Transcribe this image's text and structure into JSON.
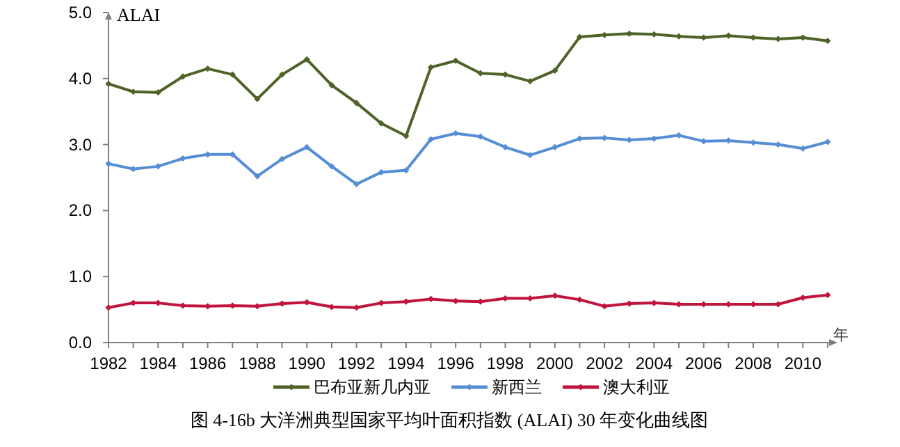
{
  "chart_data": {
    "type": "line",
    "ylabel": "ALAI",
    "xlabel": "年",
    "annotations": [
      "图 4-16b 大洋洲典型国家平均叶面积指数 (ALAI) 30 年变化曲线图"
    ],
    "categories": [
      "1982",
      null,
      "1984",
      null,
      "1986",
      null,
      "1988",
      null,
      "1990",
      null,
      "1992",
      null,
      "1994",
      null,
      "1996",
      null,
      "1998",
      null,
      "2000",
      null,
      "2002",
      null,
      "2004",
      null,
      "2006",
      null,
      "2008",
      null,
      "2010",
      null
    ],
    "ylim": [
      0,
      5
    ],
    "yticks": [
      {
        "value": 0,
        "label": "0.0"
      },
      {
        "value": 1,
        "label": "1.0"
      },
      {
        "value": 2,
        "label": "2.0"
      },
      {
        "value": 3,
        "label": "3.0"
      },
      {
        "value": 4,
        "label": "4.0"
      },
      {
        "value": 5,
        "label": "5.0"
      }
    ],
    "grid": false,
    "legend": "bottom",
    "marker": "diamond",
    "line_style": "solid",
    "series": [
      {
        "name": "巴布亚新几内亚",
        "color": "#4f6228",
        "values": [
          3.92,
          3.8,
          3.79,
          4.03,
          4.15,
          4.06,
          3.69,
          4.06,
          4.29,
          3.9,
          3.63,
          3.32,
          3.13,
          4.17,
          4.27,
          4.08,
          4.06,
          3.96,
          4.12,
          4.63,
          4.66,
          4.68,
          4.67,
          4.64,
          4.62,
          4.65,
          4.62,
          4.6,
          4.62,
          4.57
        ]
      },
      {
        "name": "新西兰",
        "color": "#558ed5",
        "values": [
          2.71,
          2.63,
          2.67,
          2.79,
          2.85,
          2.85,
          2.52,
          2.78,
          2.96,
          2.67,
          2.4,
          2.58,
          2.61,
          3.08,
          3.17,
          3.12,
          2.96,
          2.84,
          2.96,
          3.09,
          3.1,
          3.07,
          3.09,
          3.14,
          3.05,
          3.06,
          3.03,
          3.0,
          2.94,
          3.04
        ]
      },
      {
        "name": "澳大利亚",
        "color": "#c0143c",
        "values": [
          0.53,
          0.6,
          0.6,
          0.56,
          0.55,
          0.56,
          0.55,
          0.59,
          0.61,
          0.54,
          0.53,
          0.6,
          0.62,
          0.66,
          0.63,
          0.62,
          0.67,
          0.67,
          0.71,
          0.65,
          0.55,
          0.59,
          0.6,
          0.58,
          0.58,
          0.58,
          0.58,
          0.58,
          0.68,
          0.72
        ]
      }
    ]
  }
}
